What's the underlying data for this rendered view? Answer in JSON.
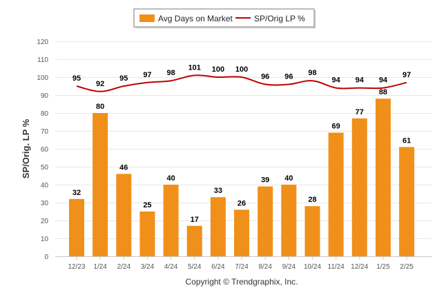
{
  "chart_data": {
    "type": "bar",
    "categories": [
      "12/23",
      "1/24",
      "2/24",
      "3/24",
      "4/24",
      "5/24",
      "6/24",
      "7/24",
      "8/24",
      "9/24",
      "10/24",
      "11/24",
      "12/24",
      "1/25",
      "2/25"
    ],
    "series": [
      {
        "name": "Avg Days on Market",
        "type": "bar",
        "color": "#f0901a",
        "values": [
          32,
          80,
          46,
          25,
          40,
          17,
          33,
          26,
          39,
          40,
          28,
          69,
          77,
          88,
          61
        ]
      },
      {
        "name": "SP/Orig LP %",
        "type": "line",
        "color": "#c00000",
        "values": [
          95,
          92,
          95,
          97,
          98,
          101,
          100,
          100,
          96,
          96,
          98,
          94,
          94,
          94,
          97
        ]
      }
    ],
    "ylabel": "SP/Orig. LP %",
    "ylim": [
      0,
      120
    ],
    "yticks": [
      0,
      10,
      20,
      30,
      40,
      50,
      60,
      70,
      80,
      90,
      100,
      110,
      120
    ],
    "grid": true,
    "legend_position": "top-center"
  },
  "footer": "Copyright © Trendgraphix, Inc."
}
